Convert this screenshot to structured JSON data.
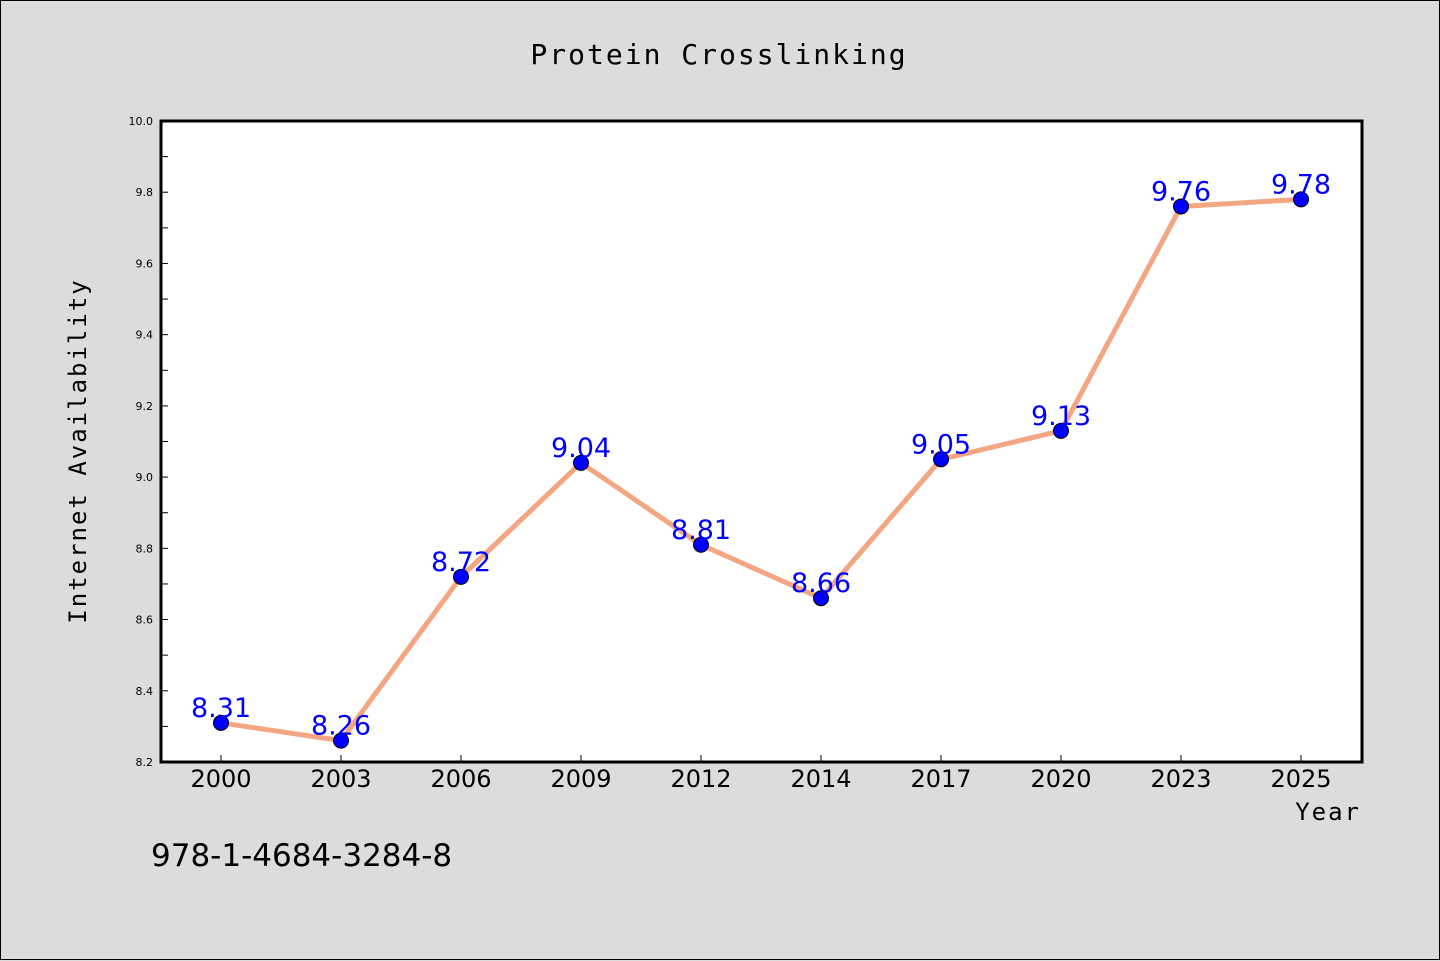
{
  "chart_data": {
    "type": "line",
    "title": "Protein Crosslinking",
    "xlabel": "Year",
    "ylabel": "Internet Availability",
    "categories": [
      "2000",
      "2003",
      "2006",
      "2009",
      "2012",
      "2014",
      "2017",
      "2020",
      "2023",
      "2025"
    ],
    "series": [
      {
        "values": [
          8.31,
          8.26,
          8.72,
          9.04,
          8.81,
          8.66,
          9.05,
          9.13,
          9.76,
          9.78
        ]
      }
    ],
    "data_labels": [
      "8.31",
      "8.26",
      "8.72",
      "9.04",
      "8.81",
      "8.66",
      "9.05",
      "9.13",
      "9.76",
      "9.78"
    ],
    "ylim": [
      8.2,
      10.0
    ],
    "yticks": [
      "8.2",
      "8.4",
      "8.6",
      "8.8",
      "9.0",
      "9.2",
      "9.4",
      "9.6",
      "9.8",
      "10.0"
    ],
    "grid": false,
    "legend": "none",
    "colors": {
      "line": "#f4a582",
      "marker": "#0000ff",
      "label": "#0000ff",
      "background": "#dcdcdc",
      "plot_background": "#ffffff"
    }
  },
  "footer": {
    "isbn": "978-1-4684-3284-8"
  }
}
